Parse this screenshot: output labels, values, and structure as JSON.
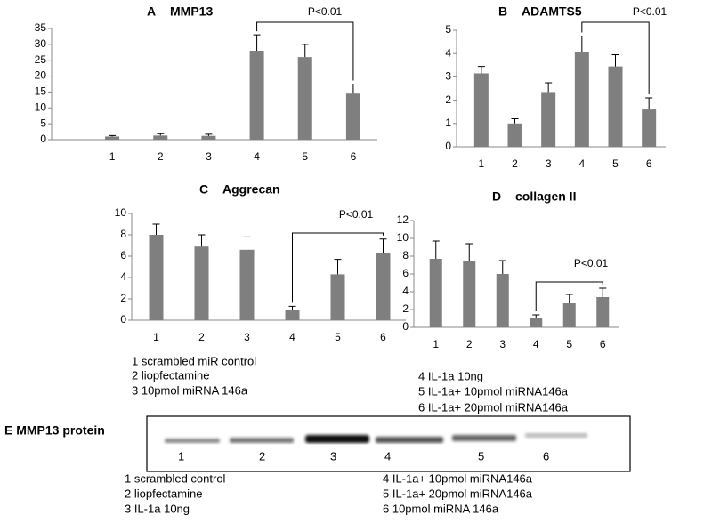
{
  "chart_data": [
    {
      "type": "bar",
      "panel": "A",
      "title": "MMP13",
      "annotation": "P<0.01",
      "categories": [
        "1",
        "2",
        "3",
        "4",
        "5",
        "6"
      ],
      "values": [
        1,
        1.3,
        1.2,
        28,
        26,
        14.5
      ],
      "errors": [
        0.3,
        0.6,
        0.5,
        5,
        4,
        3
      ],
      "color": "#7f7f7f",
      "ylim": [
        0,
        35
      ],
      "yticks": [
        0,
        5,
        10,
        15,
        20,
        25,
        30,
        35
      ]
    },
    {
      "type": "bar",
      "panel": "B",
      "title": "ADAMTS5",
      "annotation": "P<0.01",
      "categories": [
        "1",
        "2",
        "3",
        "4",
        "5",
        "6"
      ],
      "values": [
        3.15,
        1.0,
        2.35,
        4.05,
        3.45,
        1.6
      ],
      "errors": [
        0.3,
        0.2,
        0.4,
        0.7,
        0.5,
        0.5
      ],
      "color": "#7f7f7f",
      "ylim": [
        0,
        5
      ],
      "yticks": [
        0,
        1,
        2,
        3,
        4,
        5
      ]
    },
    {
      "type": "bar",
      "panel": "C",
      "title": "Aggrecan",
      "annotation": "P<0.01",
      "categories": [
        "1",
        "2",
        "3",
        "4",
        "5",
        "6"
      ],
      "values": [
        8,
        6.9,
        6.6,
        1.0,
        4.3,
        6.3
      ],
      "errors": [
        1.0,
        1.1,
        1.2,
        0.3,
        1.4,
        1.3
      ],
      "color": "#7f7f7f",
      "ylim": [
        0,
        10
      ],
      "yticks": [
        0,
        2,
        4,
        6,
        8,
        10
      ]
    },
    {
      "type": "bar",
      "panel": "D",
      "title": "collagen II",
      "annotation": "P<0.01",
      "categories": [
        "1",
        "2",
        "3",
        "4",
        "5",
        "6"
      ],
      "values": [
        7.7,
        7.4,
        6.0,
        1.0,
        2.7,
        3.4
      ],
      "errors": [
        2.0,
        2.0,
        1.5,
        0.4,
        1.0,
        1.0
      ],
      "color": "#7f7f7f",
      "ylim": [
        0,
        12
      ],
      "yticks": [
        0,
        2,
        4,
        6,
        8,
        10,
        12
      ]
    }
  ],
  "legend_left": [
    "1 scrambled miR control",
    "2 liopfectamine",
    "3 10pmol miRNA 146a"
  ],
  "legend_right": [
    "4  IL-1a 10ng",
    "5  IL-1a+ 10pmol miRNA146a",
    "6  IL-1a+ 20pmol miRNA146a"
  ],
  "panel_e": {
    "title": "E  MMP13 protein",
    "lanes": [
      "1",
      "2",
      "3",
      "4",
      "5",
      "6"
    ],
    "legend_left": [
      "1 scrambled control",
      "2 liopfectamine",
      "3 IL-1a 10ng"
    ],
    "legend_right": [
      "4 IL-1a+ 10pmol miRNA146a",
      "5 IL-1a+ 20pmol miRNA146a",
      "6 10pmol miRNA 146a"
    ]
  }
}
